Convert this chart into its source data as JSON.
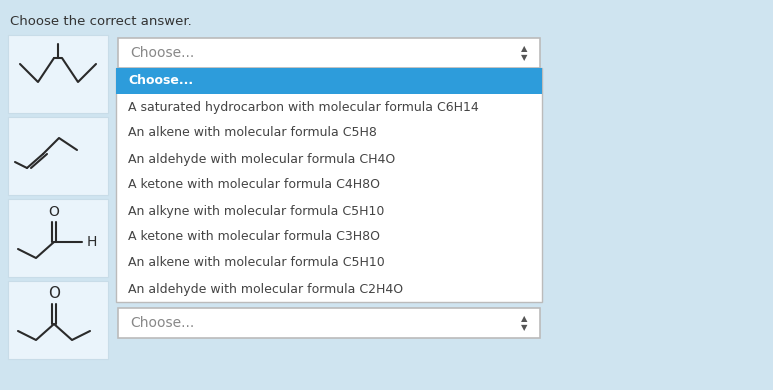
{
  "bg_color": "#cfe4f0",
  "title": "Choose the correct answer.",
  "title_fontsize": 9.5,
  "title_color": "#333333",
  "dropdown_bg": "#ffffff",
  "dropdown_border": "#bbbbbb",
  "selected_highlight_color": "#2d9cdb",
  "selected_text_color": "#ffffff",
  "item_text_color": "#444444",
  "item_fontsize": 9.0,
  "choose_label": "Choose...",
  "items": [
    "Choose...",
    "A saturated hydrocarbon with molecular formula C6H14",
    "An alkene with molecular formula C5H8",
    "An aldehyde with molecular formula CH4O",
    "A ketone with molecular formula C4H8O",
    "An alkyne with molecular formula C5H10",
    "A ketone with molecular formula C3H8O",
    "An alkene with molecular formula C5H10",
    "An aldehyde with molecular formula C2H4O"
  ],
  "mol_box_facecolor": "#eaf4fb",
  "mol_box_border": "#c8dce8"
}
